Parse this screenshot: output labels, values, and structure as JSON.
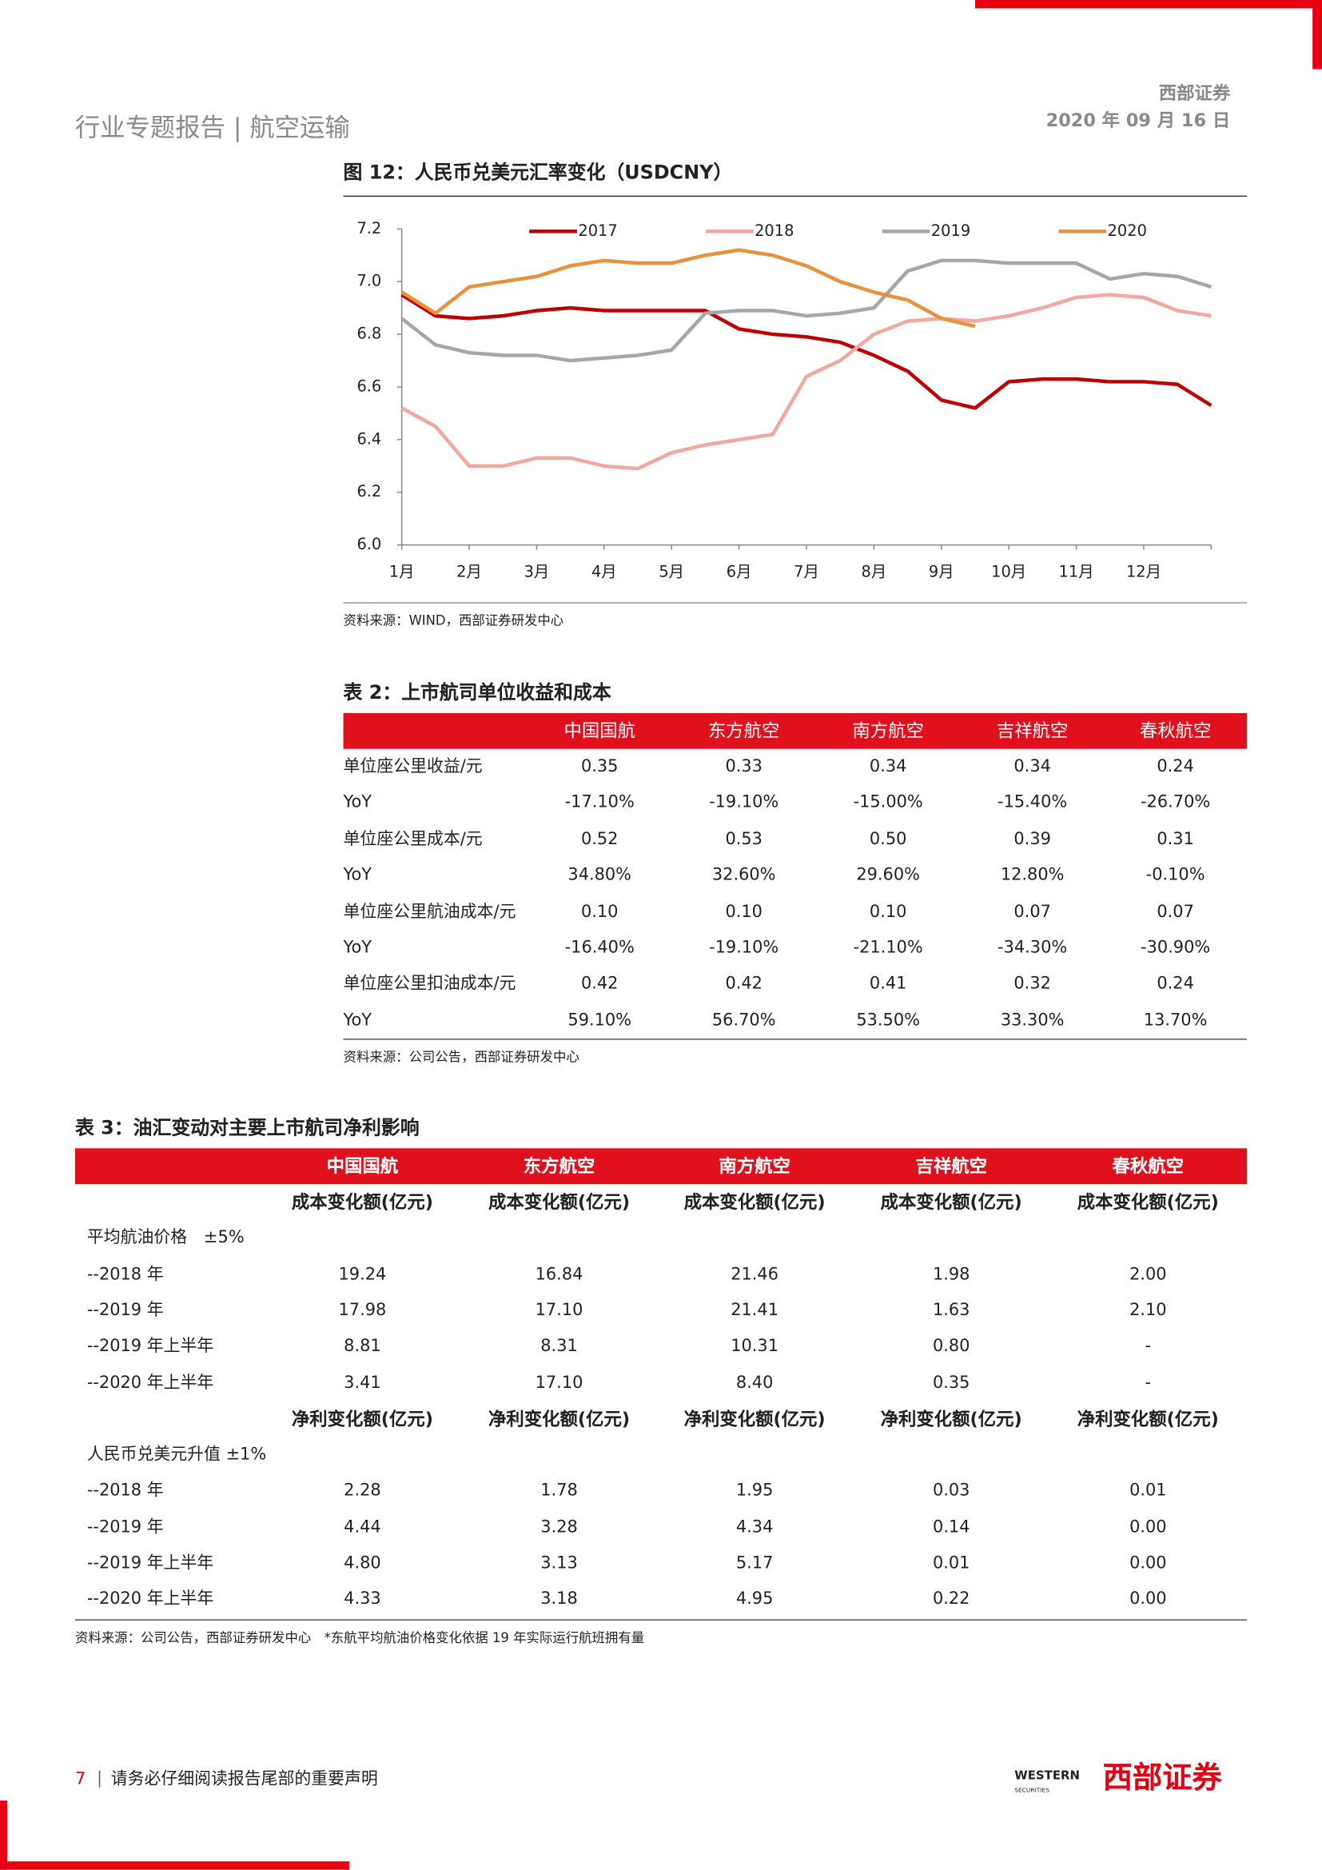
{
  "header": {
    "report_type": "行业专题报告 | 航空运输",
    "company": "西部证券",
    "date": "2020 年 09 月 16 日"
  },
  "figure": {
    "title": "图 12：人民币兑美元汇率变化（USDCNY）",
    "source": "资料来源：WIND，西部证券研发中心"
  },
  "chart_data": {
    "type": "line",
    "x": [
      1,
      1.5,
      2,
      2.5,
      3,
      3.5,
      4,
      4.5,
      5,
      5.5,
      6,
      6.5,
      7,
      7.5,
      8,
      8.5,
      9,
      9.5,
      10,
      10.5,
      11,
      11.5,
      12,
      12.5,
      13
    ],
    "xlim": [
      1,
      13
    ],
    "xticks": [
      {
        "value": 1,
        "label": "1月"
      },
      {
        "value": 2,
        "label": "2月"
      },
      {
        "value": 3,
        "label": "3月"
      },
      {
        "value": 4,
        "label": "4月"
      },
      {
        "value": 5,
        "label": "5月"
      },
      {
        "value": 6,
        "label": "6月"
      },
      {
        "value": 7,
        "label": "7月"
      },
      {
        "value": 8,
        "label": "8月"
      },
      {
        "value": 9,
        "label": "9月"
      },
      {
        "value": 10,
        "label": "10月"
      },
      {
        "value": 11,
        "label": "11月"
      },
      {
        "value": 12,
        "label": "12月"
      }
    ],
    "ylim": [
      6,
      7.2
    ],
    "yticks": [
      {
        "value": 6,
        "label": "6.0"
      },
      6.2,
      6.4,
      6.6,
      6.8,
      {
        "value": 7,
        "label": "7.0"
      },
      7.2
    ],
    "grid": false,
    "legend": "top",
    "series": [
      {
        "name": "2017",
        "color": "#c00000",
        "values": [
          6.95,
          6.87,
          6.86,
          6.87,
          6.89,
          6.9,
          6.89,
          6.89,
          6.89,
          6.89,
          6.82,
          6.8,
          6.79,
          6.77,
          6.72,
          6.66,
          6.55,
          6.52,
          6.62,
          6.63,
          6.63,
          6.62,
          6.62,
          6.61,
          6.53
        ]
      },
      {
        "name": "2018",
        "color": "#f4a6a0",
        "values": [
          6.52,
          6.45,
          6.3,
          6.3,
          6.33,
          6.33,
          6.3,
          6.29,
          6.35,
          6.38,
          6.4,
          6.42,
          6.64,
          6.7,
          6.8,
          6.85,
          6.86,
          6.85,
          6.87,
          6.9,
          6.94,
          6.95,
          6.94,
          6.89,
          6.87
        ]
      },
      {
        "name": "2019",
        "color": "#a6a6a6",
        "values": [
          6.86,
          6.76,
          6.73,
          6.72,
          6.72,
          6.7,
          6.71,
          6.72,
          6.74,
          6.88,
          6.89,
          6.89,
          6.87,
          6.88,
          6.9,
          7.04,
          7.08,
          7.08,
          7.07,
          7.07,
          7.07,
          7.01,
          7.03,
          7.02,
          6.98
        ]
      },
      {
        "name": "2020",
        "color": "#e8903c",
        "values": [
          6.96,
          6.88,
          6.98,
          7.0,
          7.02,
          7.06,
          7.08,
          7.07,
          7.07,
          7.1,
          7.12,
          7.1,
          7.06,
          7.0,
          6.96,
          6.93,
          6.86,
          6.83,
          null,
          null,
          null,
          null,
          null,
          null,
          null
        ]
      }
    ]
  },
  "table2": {
    "title": "表 2：上市航司单位收益和成本",
    "columns": [
      "中国国航",
      "东方航空",
      "南方航空",
      "吉祥航空",
      "春秋航空"
    ],
    "rows": [
      {
        "label": "单位座公里收益/元",
        "values": [
          "0.35",
          "0.33",
          "0.34",
          "0.34",
          "0.24"
        ]
      },
      {
        "label": "YoY",
        "values": [
          "-17.10%",
          "-19.10%",
          "-15.00%",
          "-15.40%",
          "-26.70%"
        ]
      },
      {
        "label": "单位座公里成本/元",
        "values": [
          "0.52",
          "0.53",
          "0.50",
          "0.39",
          "0.31"
        ]
      },
      {
        "label": "YoY",
        "values": [
          "34.80%",
          "32.60%",
          "29.60%",
          "12.80%",
          "-0.10%"
        ]
      },
      {
        "label": "单位座公里航油成本/元",
        "values": [
          "0.10",
          "0.10",
          "0.10",
          "0.07",
          "0.07"
        ]
      },
      {
        "label": "YoY",
        "values": [
          "-16.40%",
          "-19.10%",
          "-21.10%",
          "-34.30%",
          "-30.90%"
        ]
      },
      {
        "label": "单位座公里扣油成本/元",
        "values": [
          "0.42",
          "0.42",
          "0.41",
          "0.32",
          "0.24"
        ]
      },
      {
        "label": "YoY",
        "values": [
          "59.10%",
          "56.70%",
          "53.50%",
          "33.30%",
          "13.70%"
        ]
      }
    ],
    "source": "资料来源：公司公告，西部证券研发中心"
  },
  "table3": {
    "title": "表 3：油汇变动对主要上市航司净利影响",
    "columns": [
      "中国国航",
      "东方航空",
      "南方航空",
      "吉祥航空",
      "春秋航空"
    ],
    "sections": [
      {
        "subheader": [
          "成本变化额(亿元)",
          "成本变化额(亿元)",
          "成本变化额(亿元)",
          "成本变化额(亿元)",
          "成本变化额(亿元)"
        ],
        "label": "平均航油价格　±5%",
        "rows": [
          {
            "label": "--2018 年",
            "values": [
              "19.24",
              "16.84",
              "21.46",
              "1.98",
              "2.00"
            ]
          },
          {
            "label": "--2019 年",
            "values": [
              "17.98",
              "17.10",
              "21.41",
              "1.63",
              "2.10"
            ]
          },
          {
            "label": "--2019 年上半年",
            "values": [
              "8.81",
              "8.31",
              "10.31",
              "0.80",
              "-"
            ]
          },
          {
            "label": "--2020 年上半年",
            "values": [
              "3.41",
              "17.10",
              "8.40",
              "0.35",
              "-"
            ]
          }
        ]
      },
      {
        "subheader": [
          "净利变化额(亿元)",
          "净利变化额(亿元)",
          "净利变化额(亿元)",
          "净利变化额(亿元)",
          "净利变化额(亿元)"
        ],
        "label": "人民币兑美元升值 ±1%",
        "rows": [
          {
            "label": "--2018 年",
            "values": [
              "2.28",
              "1.78",
              "1.95",
              "0.03",
              "0.01"
            ]
          },
          {
            "label": "--2019 年",
            "values": [
              "4.44",
              "3.28",
              "4.34",
              "0.14",
              "0.00"
            ]
          },
          {
            "label": "--2019 年上半年",
            "values": [
              "4.80",
              "3.13",
              "5.17",
              "0.01",
              "0.00"
            ]
          },
          {
            "label": "--2020 年上半年",
            "values": [
              "4.33",
              "3.18",
              "4.95",
              "0.22",
              "0.00"
            ]
          }
        ]
      }
    ],
    "source": "资料来源：公司公告，西部证券研发中心　*东航平均航油价格变化依据 19 年实际运行航班拥有量"
  },
  "footer": {
    "page": "7",
    "disclaimer": "请务必仔细阅读报告尾部的重要声明",
    "logo_en": "WESTERN",
    "logo_en_sub": "SECURITIES",
    "logo_cn": "西部证券"
  }
}
